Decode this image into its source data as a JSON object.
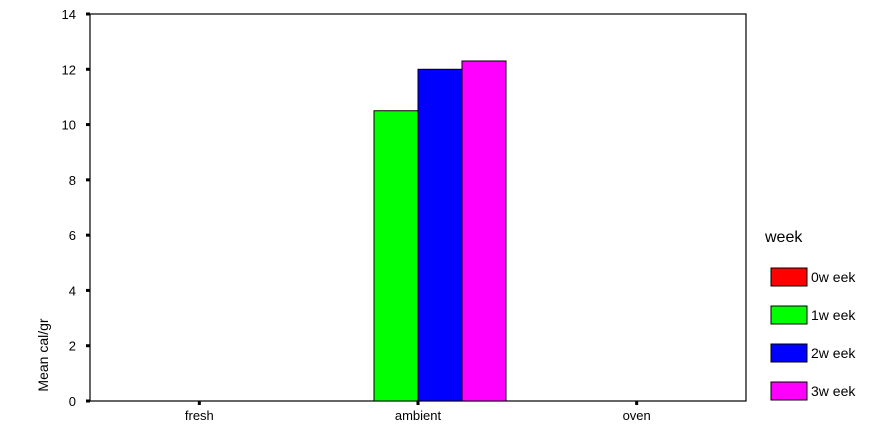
{
  "chart_data": {
    "type": "bar",
    "ylabel": "Mean cal/gr",
    "ylim": [
      0,
      14
    ],
    "yticks": [
      0,
      2,
      4,
      6,
      8,
      10,
      12,
      14
    ],
    "categories": [
      "fresh",
      "ambient",
      "oven"
    ],
    "legend_title": "week",
    "legend_position": "right",
    "series": [
      {
        "name": "0w eek",
        "color": "#ff0000",
        "values": [
          0,
          0,
          0
        ]
      },
      {
        "name": "1w eek",
        "color": "#00ff00",
        "values": [
          0,
          10.5,
          0
        ]
      },
      {
        "name": "2w eek",
        "color": "#0000ff",
        "values": [
          0,
          12.0,
          0
        ]
      },
      {
        "name": "3w eek",
        "color": "#ff00ff",
        "values": [
          0,
          12.3,
          0
        ]
      }
    ]
  }
}
